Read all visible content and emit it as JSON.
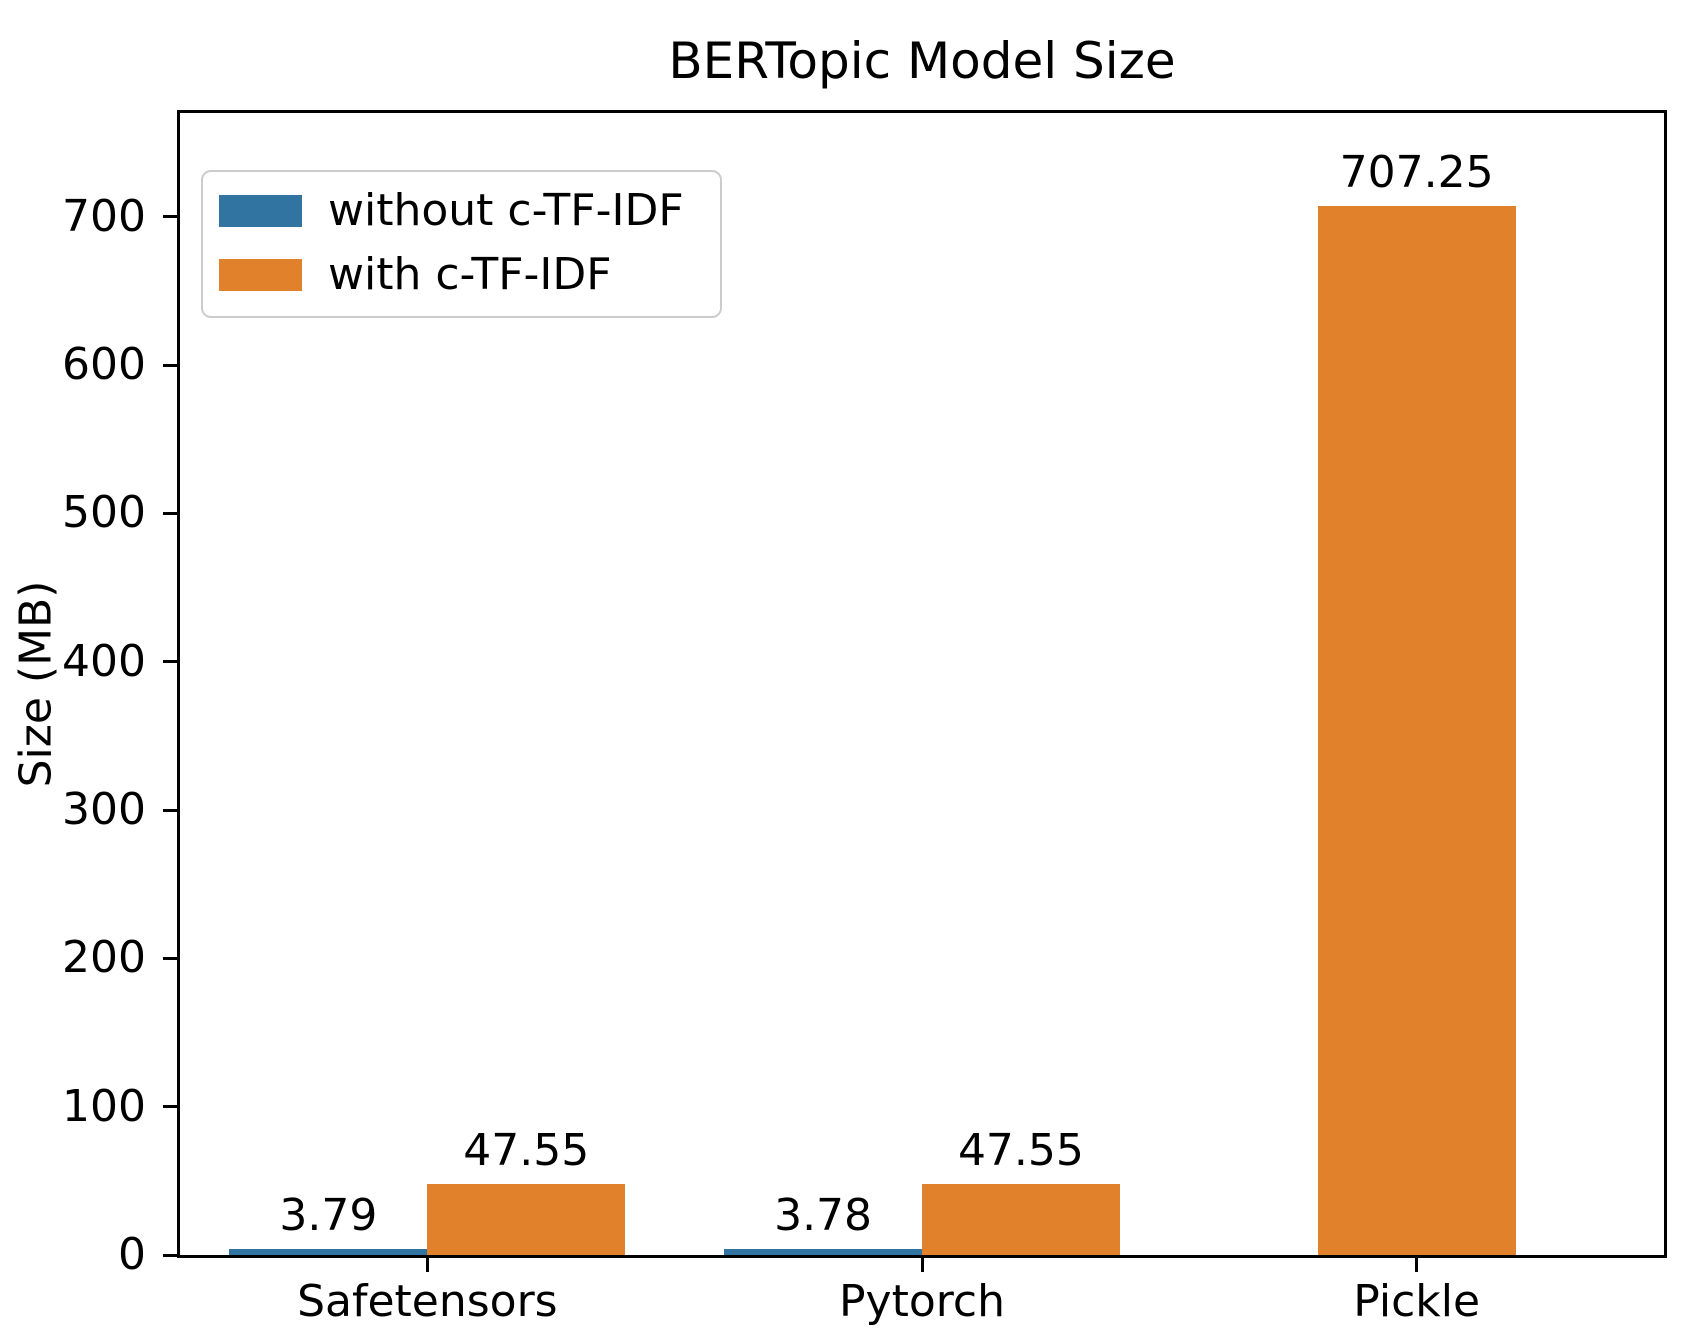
{
  "figure": {
    "background": "#ffffff",
    "text_color": "#000000",
    "axis_color": "#000000",
    "legend_border_color": "#cccccc"
  },
  "chart_data": {
    "type": "bar",
    "title": "BERTopic Model Size",
    "xlabel": "",
    "ylabel": "Size (MB)",
    "categories": [
      "Safetensors",
      "Pytorch",
      "Pickle"
    ],
    "series": [
      {
        "name": "without c-TF-IDF",
        "color": "#3274a1",
        "values": [
          3.79,
          3.78,
          null
        ],
        "labels": [
          "3.79",
          "3.78",
          null
        ]
      },
      {
        "name": "with c-TF-IDF",
        "color": "#e1812c",
        "values": [
          47.55,
          47.55,
          707.25
        ],
        "labels": [
          "47.55",
          "47.55",
          "707.25"
        ]
      }
    ],
    "yticks": [
      0,
      100,
      200,
      300,
      400,
      500,
      600,
      700
    ],
    "ylim": [
      0,
      770
    ],
    "grid": false,
    "legend_position": "upper left",
    "bar_width_fraction": 0.4
  }
}
